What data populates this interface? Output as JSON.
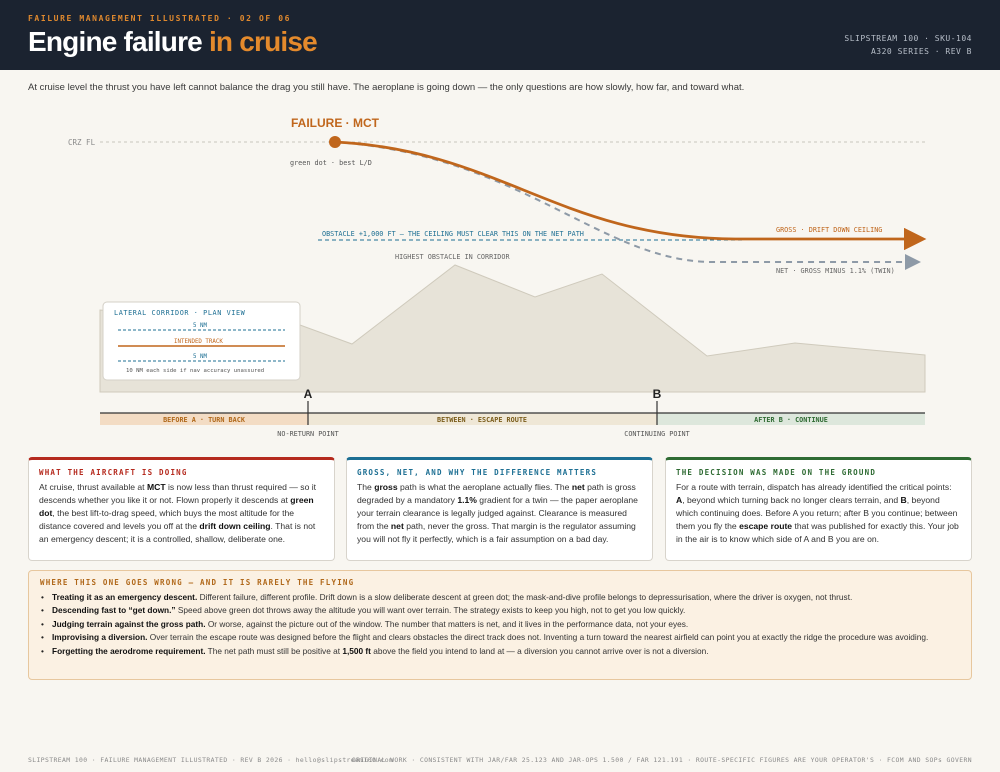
{
  "header": {
    "kicker": "FAILURE MANAGEMENT ILLUSTRATED · 02 OF 06",
    "title_main": "Engine failure ",
    "title_accent": "in cruise",
    "meta_line1": "SLIPSTREAM 100 · SKU-104",
    "meta_line2": "A320 SERIES · REV B"
  },
  "intro": "At cruise level the thrust you have left cannot balance the drag you still have. The aeroplane is going down — the only questions are how slowly, how far, and toward what.",
  "diagram": {
    "crz_label": "CRZ FL",
    "failure_label": "FAILURE · MCT",
    "green_dot_label": "green dot · best L/D",
    "gross_label": "GROSS · DRIFT DOWN CEILING",
    "net_label": "NET · GROSS MINUS 1.1% (TWIN)",
    "obstacle_line_label": "OBSTACLE +1,000 FT — THE CEILING MUST CLEAR THIS ON THE NET PATH",
    "highest_obstacle_label": "HIGHEST OBSTACLE IN CORRIDOR",
    "corridor": {
      "title": "LATERAL CORRIDOR · PLAN VIEW",
      "top_nm": "5 NM",
      "track": "INTENDED TRACK",
      "bottom_nm": "5 NM",
      "note": "10 NM each side if nav accuracy unassured"
    },
    "point_a": "A",
    "point_b": "B",
    "no_return": "NO-RETURN POINT",
    "continuing": "CONTINUING POINT",
    "band_before": "BEFORE A · TURN BACK",
    "band_between": "BETWEEN · ESCAPE ROUTE",
    "band_after": "AFTER B · CONTINUE"
  },
  "colors": {
    "gross": "#c0661c",
    "net": "#8e9aa7",
    "obstacle": "#1d6f93",
    "terrain": "#e7e3d8",
    "before": "#f3dcc4",
    "between": "#efe7d6",
    "after": "#dde7dc"
  },
  "panels": {
    "aircraft": {
      "title": "WHAT THE AIRCRAFT IS DOING",
      "t1": "At cruise, thrust available at ",
      "b1": "MCT",
      "t2": " is now less than thrust required — so it descends whether you like it or not. Flown properly it descends at ",
      "b2": "green dot",
      "t3": ", the best lift-to-drag speed, which buys the most altitude for the distance covered and levels you off at the ",
      "b3": "drift down ceiling",
      "t4": ". That is not an emergency descent; it is a controlled, shallow, deliberate one."
    },
    "gross_net": {
      "title": "GROSS, NET, AND WHY THE DIFFERENCE MATTERS",
      "t1": "The ",
      "b1": "gross",
      "t2": " path is what the aeroplane actually flies. The ",
      "b2": "net",
      "t3": " path is gross degraded by a mandatory ",
      "b3": "1.1%",
      "t4": " gradient for a twin — the paper aeroplane your terrain clearance is legally judged against. Clearance is measured from the ",
      "b4": "net",
      "t5": " path, never the gross. That margin is the regulator assuming you will not fly it perfectly, which is a fair assumption on a bad day."
    },
    "decision": {
      "title": "THE DECISION WAS MADE ON THE GROUND",
      "t1": "For a route with terrain, dispatch has already identified the critical points: ",
      "b1": "A",
      "t2": ", beyond which turning back no longer clears terrain, and ",
      "b2": "B",
      "t3": ", beyond which continuing does. Before A you return; after B you continue; between them you fly the ",
      "b3": "escape route",
      "t4": " that was published for exactly this. Your job in the air is to know which side of A and B you are on."
    }
  },
  "wrong": {
    "title": "WHERE THIS ONE GOES WRONG — AND IT IS RARELY THE FLYING",
    "items": [
      {
        "b": "Treating it as an emergency descent.",
        "t": " Different failure, different profile. Drift down is a slow deliberate descent at green dot; the mask-and-dive profile belongs to depressurisation, where the driver is oxygen, not thrust."
      },
      {
        "b": "Descending fast to “get down.”",
        "t": " Speed above green dot throws away the altitude you will want over terrain. The strategy exists to keep you high, not to get you low quickly."
      },
      {
        "b": "Judging terrain against the gross path.",
        "t": " Or worse, against the picture out of the window. The number that matters is net, and it lives in the performance data, not your eyes."
      },
      {
        "b": "Improvising a diversion.",
        "t": " Over terrain the escape route was designed before the flight and clears obstacles the direct track does not. Inventing a turn toward the nearest airfield can point you at exactly the ridge the procedure was avoiding."
      },
      {
        "b": "Forgetting the aerodrome requirement.",
        "t": " The net path must still be positive at ",
        "b2": "1,500 ft",
        "t2": " above the field you intend to land at — a diversion you cannot arrive over is not a diversion."
      }
    ]
  },
  "footer": {
    "left": "SLIPSTREAM 100 · FAILURE MANAGEMENT ILLUSTRATED · REV B 2026 · hello@slipstream100.com",
    "right": "ORIGINAL WORK · CONSISTENT WITH JAR/FAR 25.123 AND JAR-OPS 1.500 / FAR 121.191 · ROUTE-SPECIFIC FIGURES ARE YOUR OPERATOR'S · FCOM AND SOPs GOVERN"
  }
}
